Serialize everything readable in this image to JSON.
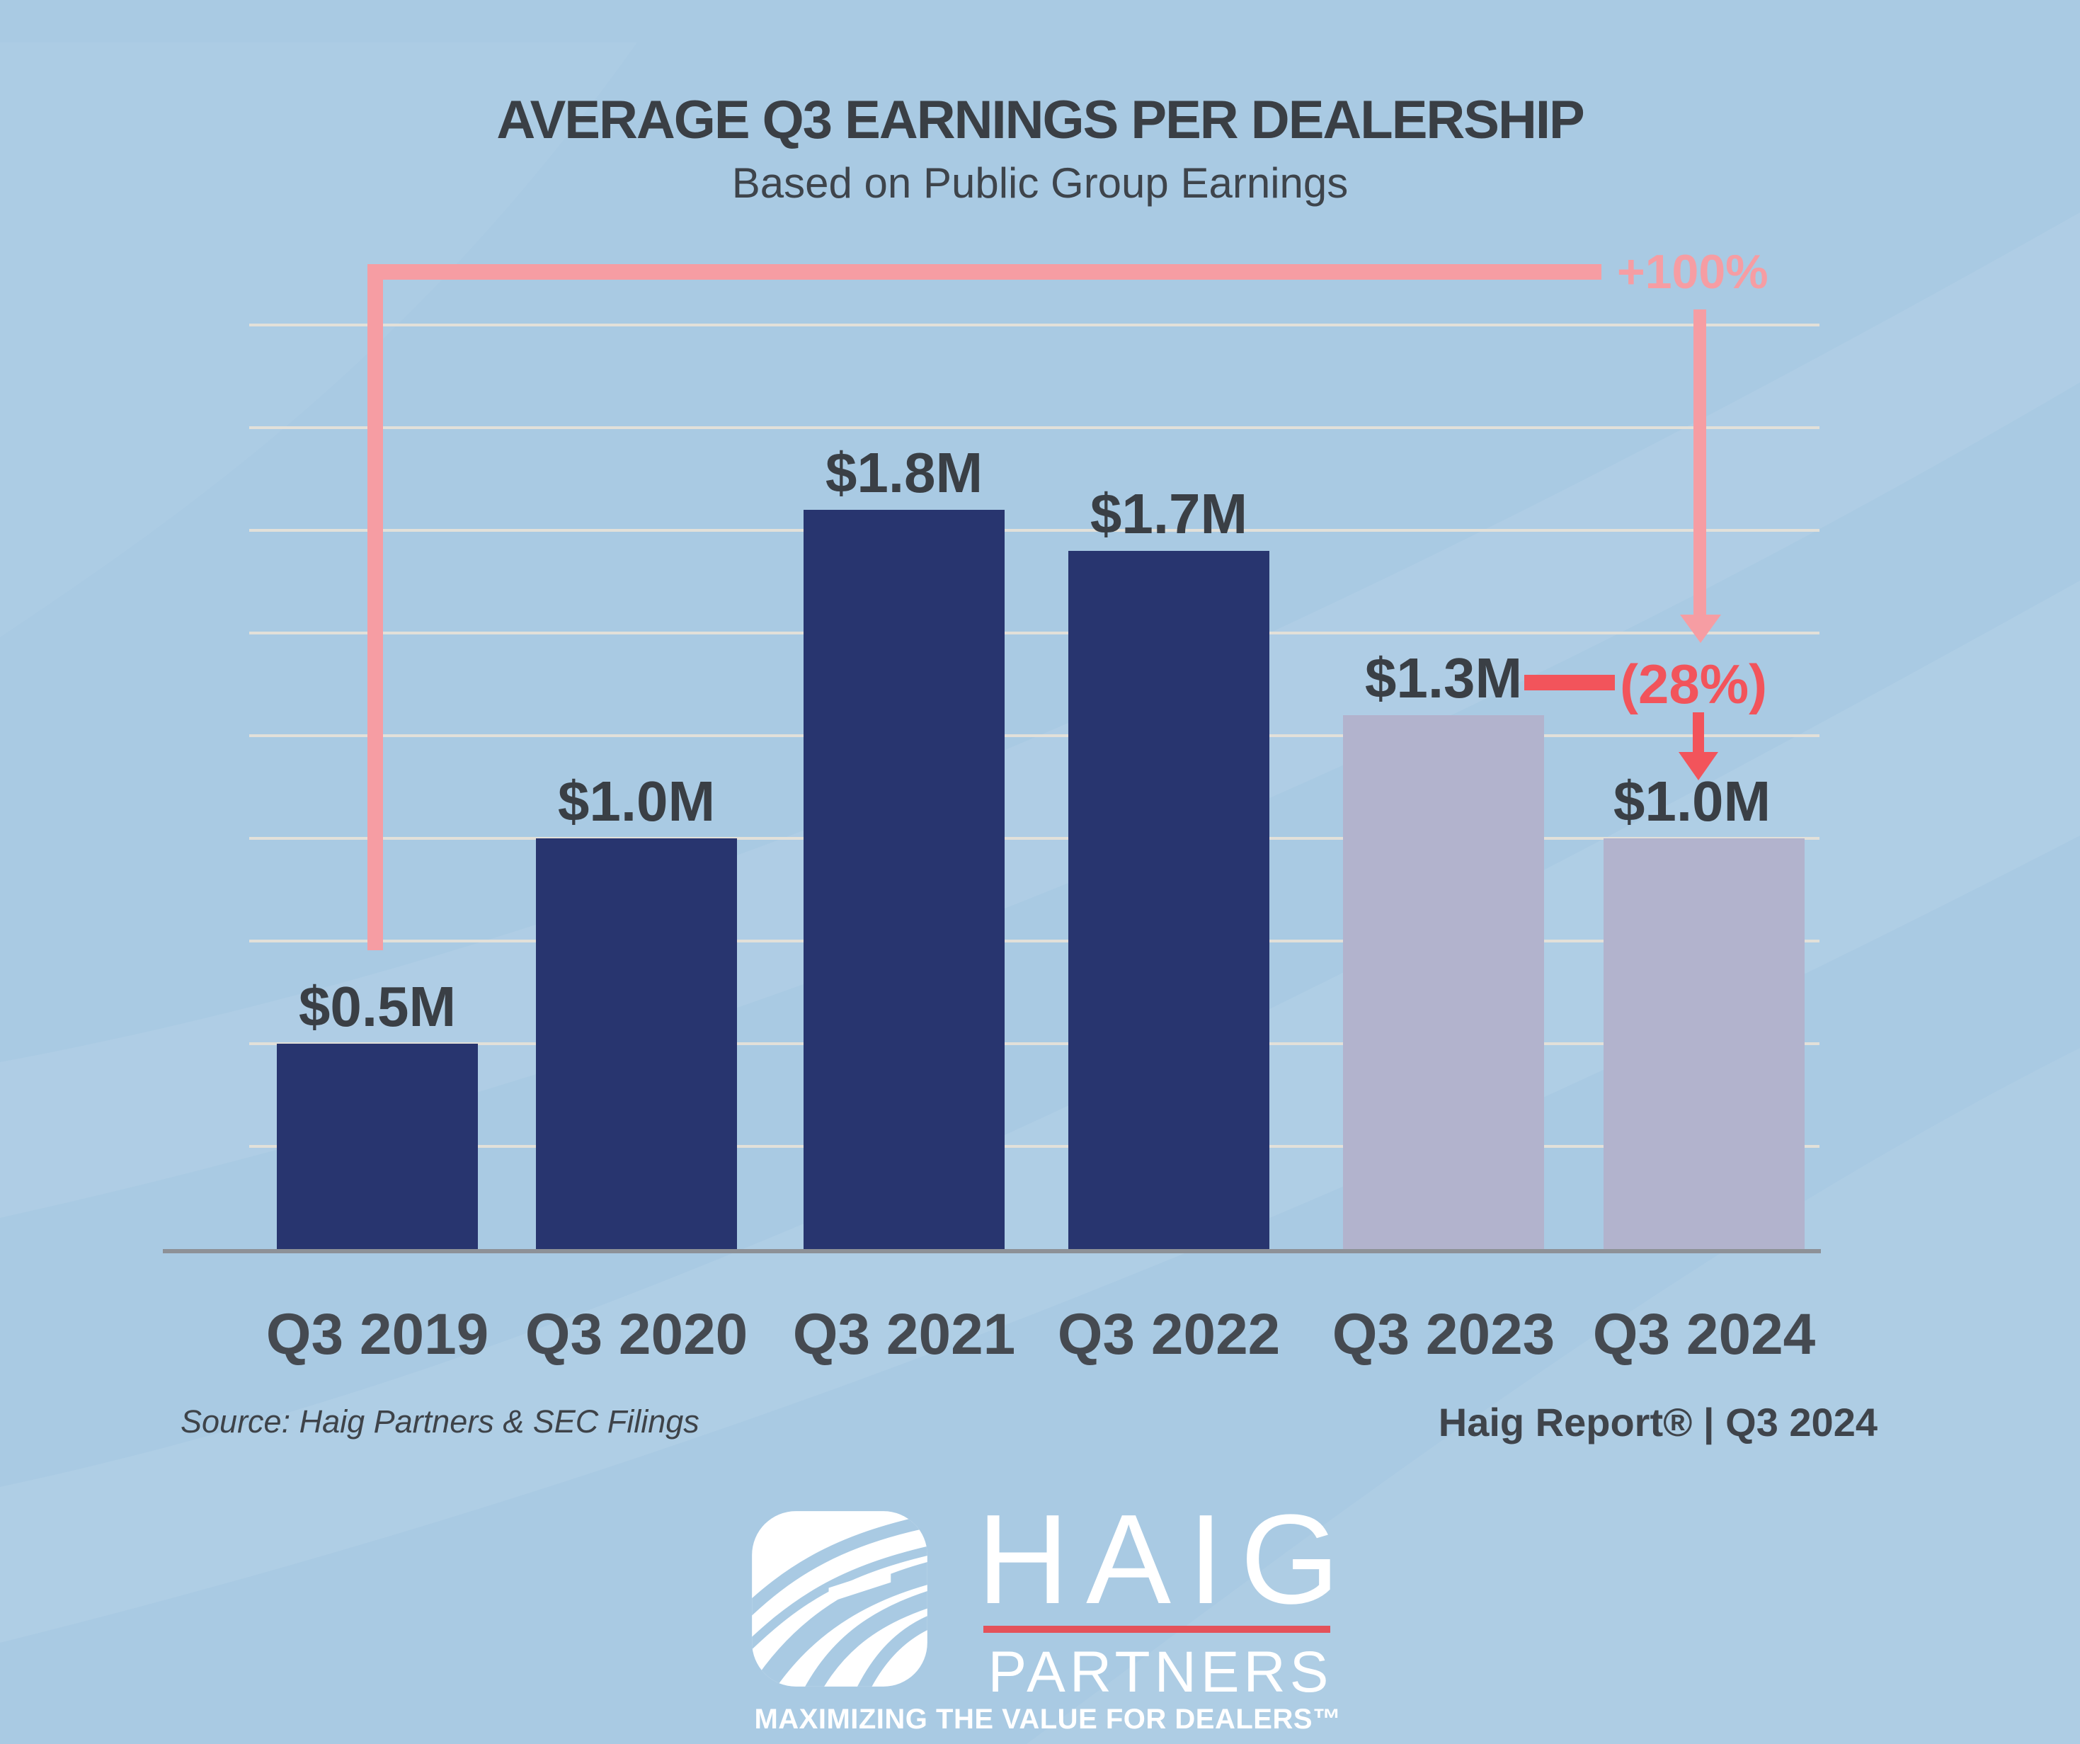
{
  "header": {
    "title": "AVERAGE Q3 EARNINGS PER DEALERSHIP",
    "subtitle": "Based on Public Group Earnings"
  },
  "chart_data": {
    "type": "bar",
    "title": "AVERAGE Q3 EARNINGS PER DEALERSHIP",
    "subtitle": "Based on Public Group Earnings",
    "categories": [
      "Q3 2019",
      "Q3 2020",
      "Q3 2021",
      "Q3 2022",
      "Q3 2023",
      "Q3 2024"
    ],
    "values": [
      0.5,
      1.0,
      1.8,
      1.7,
      1.3,
      1.0
    ],
    "value_labels": [
      "$0.5M",
      "$1.0M",
      "$1.8M",
      "$1.7M",
      "$1.3M",
      "$1.0M"
    ],
    "bar_styles": [
      "navy",
      "navy",
      "navy",
      "navy",
      "light",
      "light"
    ],
    "unit": "millions USD per dealership",
    "ylim": [
      0,
      2.25
    ],
    "grid_step": 0.25,
    "grid": "horizontal, unlabeled",
    "legend": "none",
    "annotations": [
      {
        "label": "+100%",
        "meaning": "change from Q3 2019 to Q3 2024"
      },
      {
        "label": "(28%)",
        "meaning": "decline from Q3 2023 to Q3 2024"
      }
    ]
  },
  "footer": {
    "source": "Source: Haig Partners & SEC Filings",
    "report": "Haig Report® | Q3 2024"
  },
  "logo": {
    "name": "HAIG",
    "sub": "PARTNERS",
    "tagline": "MAXIMIZING THE VALUE FOR DEALERS™",
    "mark": "haig-swoosh-mark"
  },
  "colors": {
    "background": "#A9CAE3",
    "bar_navy": "#28356F",
    "bar_light": "#B2B3CD",
    "gridline": "#E2E0D9",
    "axis": "#8D9197",
    "text_dark": "#3A3F45",
    "text_label": "#3E434A",
    "pink_light": "#F69DA3",
    "coral": "#F2545B",
    "logo_white": "#FFFFFF",
    "logo_red": "#E4525A"
  }
}
